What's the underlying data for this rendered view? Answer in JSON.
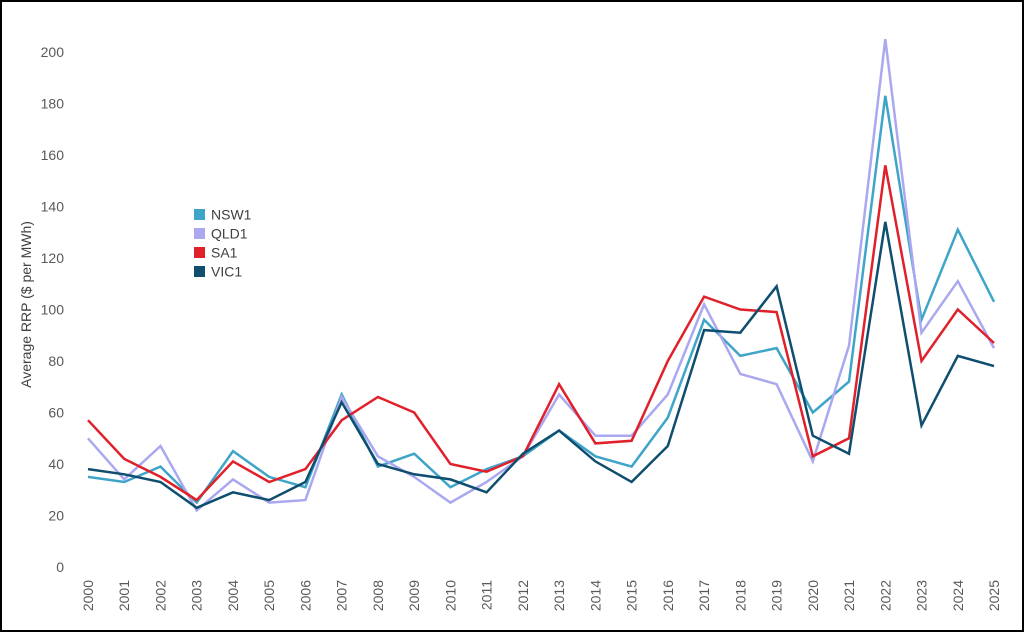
{
  "chart_data": {
    "type": "line",
    "title": "",
    "xlabel": "",
    "ylabel": "Average RRP ($ per MWh)",
    "ylim": [
      0,
      210
    ],
    "yticks": [
      0,
      20,
      40,
      60,
      80,
      100,
      120,
      140,
      160,
      180,
      200
    ],
    "grid": false,
    "legend_position": "left-middle",
    "categories": [
      "2000",
      "2001",
      "2002",
      "2003",
      "2004",
      "2005",
      "2006",
      "2007",
      "2008",
      "2009",
      "2010",
      "2011",
      "2012",
      "2013",
      "2014",
      "2015",
      "2016",
      "2017",
      "2018",
      "2019",
      "2020",
      "2021",
      "2022",
      "2023",
      "2024",
      "2025"
    ],
    "series": [
      {
        "name": "NSW1",
        "color": "#3fa5c8",
        "values": [
          35,
          33,
          39,
          25,
          45,
          35,
          31,
          67,
          39,
          44,
          31,
          38,
          43,
          53,
          43,
          39,
          58,
          96,
          82,
          85,
          60,
          72,
          183,
          96,
          131,
          103
        ]
      },
      {
        "name": "QLD1",
        "color": "#aaa8f0",
        "values": [
          50,
          34,
          47,
          22,
          34,
          25,
          26,
          66,
          43,
          35,
          25,
          33,
          43,
          67,
          51,
          51,
          67,
          102,
          75,
          71,
          41,
          86,
          205,
          91,
          111,
          85
        ]
      },
      {
        "name": "SA1",
        "color": "#e0202a",
        "values": [
          57,
          42,
          35,
          26,
          41,
          33,
          38,
          57,
          66,
          60,
          40,
          37,
          43,
          71,
          48,
          49,
          80,
          105,
          100,
          99,
          43,
          50,
          156,
          80,
          100,
          87
        ]
      },
      {
        "name": "VIC1",
        "color": "#0f4e6e",
        "values": [
          38,
          36,
          33,
          23,
          29,
          26,
          33,
          64,
          40,
          36,
          34,
          29,
          44,
          53,
          41,
          33,
          47,
          92,
          91,
          109,
          51,
          44,
          134,
          55,
          82,
          78
        ]
      }
    ]
  }
}
